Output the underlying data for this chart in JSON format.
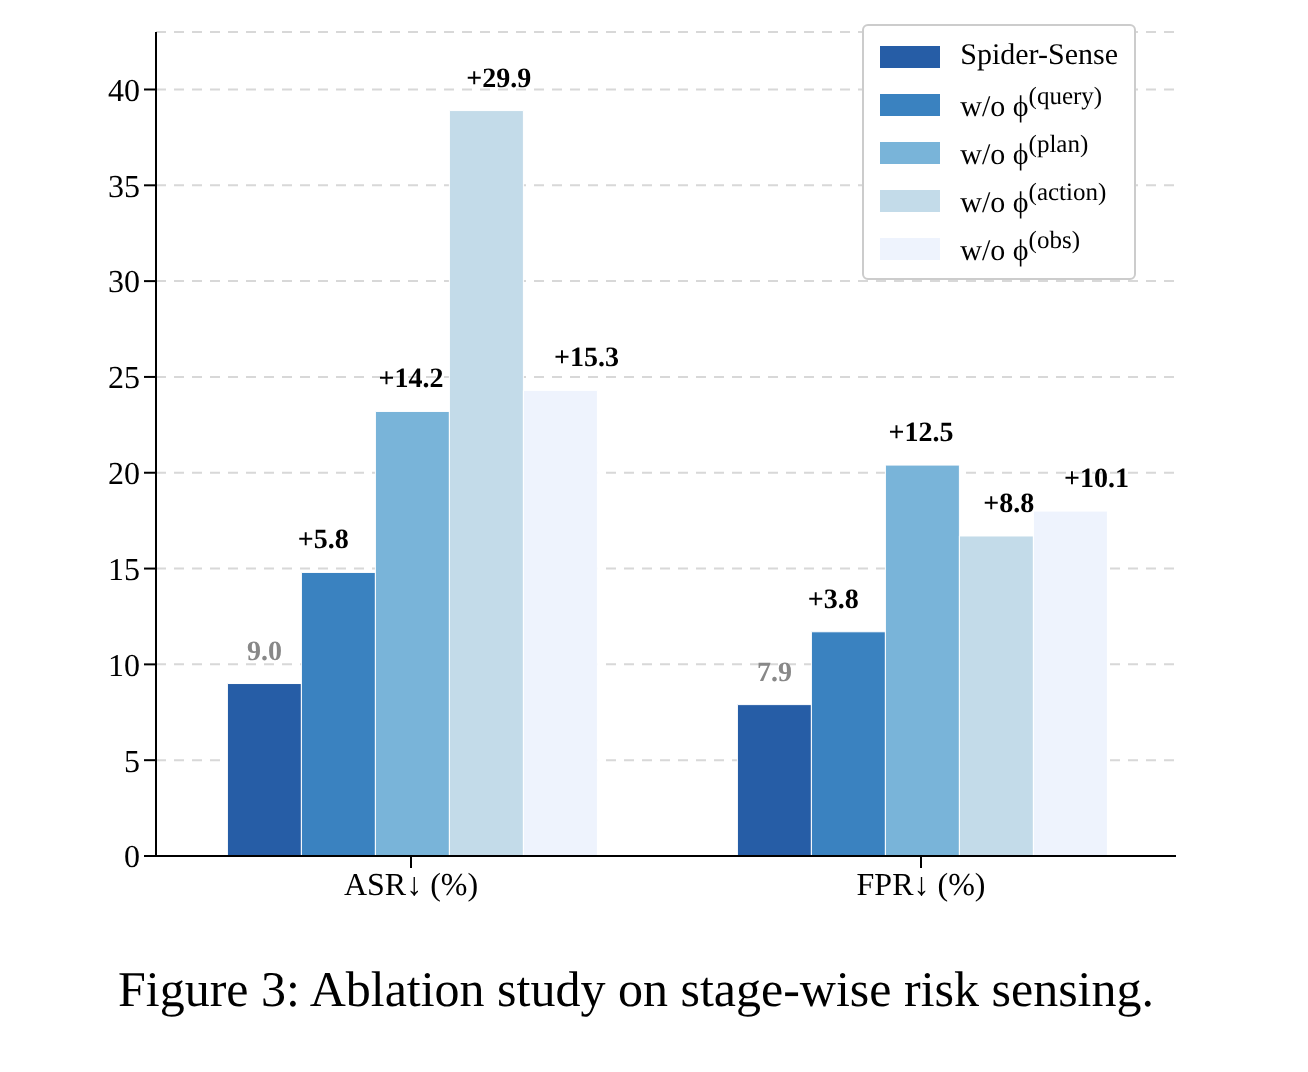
{
  "chart_data": {
    "type": "bar",
    "categories": [
      "ASR↓ (%)",
      "FPR↓ (%)"
    ],
    "series": [
      {
        "name": "Spider-Sense",
        "color": "#265da6",
        "values": [
          9.0,
          7.9
        ],
        "value_labels": [
          "9.0",
          "7.9"
        ]
      },
      {
        "name": "w/o ϕ$^{(query)}$",
        "color": "#3a82c0",
        "values": [
          14.8,
          11.7
        ]
      },
      {
        "name": "w/o ϕ$^{(plan)}$",
        "color": "#79b4d9",
        "values": [
          23.2,
          20.4
        ]
      },
      {
        "name": "w/o ϕ$^{(action)}$",
        "color": "#c3dbe9",
        "values": [
          38.9,
          16.7
        ]
      },
      {
        "name": "w/o ϕ$^{(obs)}$",
        "color": "#eef3fd",
        "values": [
          24.3,
          18.0
        ]
      }
    ],
    "ylim": [
      0,
      43
    ],
    "yticks": [
      0,
      5,
      10,
      15,
      20,
      25,
      30,
      35,
      40
    ],
    "grid": "y",
    "legend": "top right",
    "annotations": [
      "+5.8",
      "+14.2",
      "+29.9",
      "+15.3",
      "+3.8",
      "+12.5",
      "+8.8",
      "+10.1",
      "Figure 3: Ablation study on stage-wise risk sensing."
    ]
  }
}
